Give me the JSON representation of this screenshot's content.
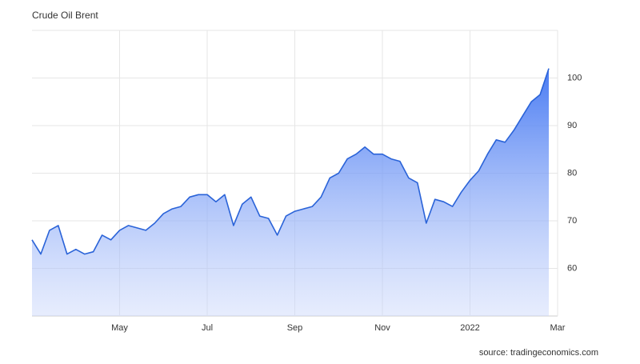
{
  "chart_data": {
    "type": "area",
    "title": "Crude Oil Brent",
    "source": "source: tradingeconomics.com",
    "categories": [
      null,
      null,
      null,
      null,
      null,
      null,
      null,
      null,
      null,
      null,
      "May",
      null,
      null,
      null,
      null,
      null,
      null,
      null,
      null,
      null,
      "Jul",
      null,
      null,
      null,
      null,
      null,
      null,
      null,
      null,
      null,
      "Sep",
      null,
      null,
      null,
      null,
      null,
      null,
      null,
      null,
      null,
      "Nov",
      null,
      null,
      null,
      null,
      null,
      null,
      null,
      null,
      null,
      "2022",
      null,
      null,
      null,
      null,
      null,
      null,
      null,
      null,
      null,
      "Mar"
    ],
    "values": [
      66,
      63,
      68,
      69,
      63,
      64,
      63,
      63.5,
      67,
      66,
      68,
      69,
      68.5,
      68,
      69.5,
      71.5,
      72.5,
      73,
      75,
      75.5,
      75.5,
      74,
      75.5,
      69,
      73.5,
      75,
      71,
      70.5,
      67,
      71,
      72,
      72.5,
      73,
      75,
      79,
      80,
      83,
      84,
      85.5,
      84,
      84,
      83,
      82.5,
      79,
      78,
      69.5,
      74.5,
      74,
      73,
      76,
      78.5,
      80.5,
      84,
      87,
      86.5,
      89,
      92,
      95,
      96.5,
      102,
      null
    ],
    "color": "#2a63d8",
    "ylim": [
      50,
      110
    ],
    "yticks": [
      60,
      70,
      80,
      90,
      100
    ],
    "grid": true,
    "y_axis_side": "right"
  }
}
